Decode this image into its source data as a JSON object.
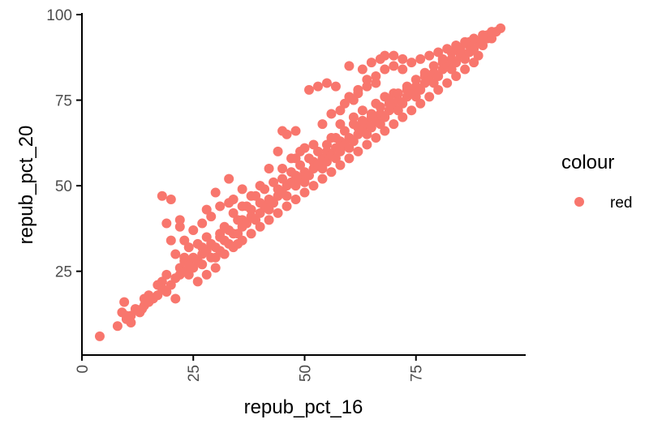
{
  "chart_data": {
    "type": "scatter",
    "xlabel": "repub_pct_16",
    "ylabel": "repub_pct_20",
    "xlim": [
      0,
      98
    ],
    "ylim": [
      1,
      100
    ],
    "x_ticks": [
      "0",
      "25",
      "50",
      "75"
    ],
    "y_ticks": [
      "25",
      "50",
      "75",
      "100"
    ],
    "grid": false,
    "legend": {
      "title": "colour",
      "placement": "right",
      "items": [
        {
          "label": "red",
          "color": "#F8766D"
        }
      ]
    },
    "point_color": "#F8766D",
    "series": [
      {
        "points": [
          [
            4,
            6
          ],
          [
            8,
            9
          ],
          [
            9,
            13
          ],
          [
            9.5,
            16
          ],
          [
            10,
            11
          ],
          [
            11,
            12
          ],
          [
            11,
            10
          ],
          [
            13,
            13
          ],
          [
            13.5,
            14
          ],
          [
            14,
            15
          ],
          [
            15,
            16
          ],
          [
            15,
            18
          ],
          [
            16,
            17
          ],
          [
            17,
            18
          ],
          [
            18,
            20
          ],
          [
            18,
            22
          ],
          [
            19,
            19
          ],
          [
            20,
            21
          ],
          [
            21,
            17
          ],
          [
            21,
            23
          ],
          [
            22,
            24
          ],
          [
            22,
            26
          ],
          [
            23,
            25
          ],
          [
            23,
            28
          ],
          [
            24,
            24
          ],
          [
            24,
            27
          ],
          [
            25,
            26
          ],
          [
            25,
            29
          ],
          [
            26,
            28
          ],
          [
            27,
            30
          ],
          [
            27,
            27
          ],
          [
            28,
            31
          ],
          [
            29,
            29
          ],
          [
            29,
            33
          ],
          [
            30,
            32
          ],
          [
            31,
            31
          ],
          [
            31,
            35
          ],
          [
            32,
            34
          ],
          [
            33,
            33
          ],
          [
            33,
            37
          ],
          [
            34,
            36
          ],
          [
            35,
            36
          ],
          [
            36,
            38
          ],
          [
            36,
            40
          ],
          [
            37,
            39
          ],
          [
            38,
            41
          ],
          [
            38,
            43
          ],
          [
            39,
            40
          ],
          [
            40,
            42
          ],
          [
            40,
            45
          ],
          [
            41,
            44
          ],
          [
            42,
            43
          ],
          [
            42,
            46
          ],
          [
            43,
            45
          ],
          [
            44,
            47
          ],
          [
            44,
            49
          ],
          [
            45,
            48
          ],
          [
            46,
            47
          ],
          [
            46,
            50
          ],
          [
            47,
            51
          ],
          [
            48,
            50
          ],
          [
            48,
            53
          ],
          [
            49,
            52
          ],
          [
            50,
            51
          ],
          [
            50,
            54
          ],
          [
            51,
            53
          ],
          [
            52,
            55
          ],
          [
            52,
            57
          ],
          [
            53,
            56
          ],
          [
            54,
            58
          ],
          [
            54,
            55
          ],
          [
            55,
            57
          ],
          [
            55,
            60
          ],
          [
            56,
            59
          ],
          [
            57,
            61
          ],
          [
            57,
            58
          ],
          [
            58,
            60
          ],
          [
            58,
            63
          ],
          [
            59,
            62
          ],
          [
            60,
            61
          ],
          [
            60,
            64
          ],
          [
            61,
            63
          ],
          [
            62,
            65
          ],
          [
            62,
            67
          ],
          [
            63,
            66
          ],
          [
            64,
            65
          ],
          [
            64,
            68
          ],
          [
            65,
            67
          ],
          [
            65,
            70
          ],
          [
            66,
            69
          ],
          [
            67,
            68
          ],
          [
            67,
            71
          ],
          [
            68,
            70
          ],
          [
            69,
            72
          ],
          [
            69,
            74
          ],
          [
            70,
            73
          ],
          [
            71,
            72
          ],
          [
            71,
            75
          ],
          [
            72,
            74
          ],
          [
            73,
            76
          ],
          [
            73,
            78
          ],
          [
            74,
            77
          ],
          [
            75,
            76
          ],
          [
            75,
            79
          ],
          [
            76,
            78
          ],
          [
            77,
            80
          ],
          [
            77,
            82
          ],
          [
            78,
            81
          ],
          [
            79,
            80
          ],
          [
            79,
            83
          ],
          [
            80,
            82
          ],
          [
            81,
            84
          ],
          [
            81,
            86
          ],
          [
            82,
            85
          ],
          [
            83,
            84
          ],
          [
            83,
            87
          ],
          [
            84,
            86
          ],
          [
            85,
            88
          ],
          [
            85,
            89
          ],
          [
            86,
            87
          ],
          [
            87,
            89
          ],
          [
            87,
            91
          ],
          [
            88,
            90
          ],
          [
            89,
            92
          ],
          [
            89,
            88
          ],
          [
            90,
            91
          ],
          [
            91,
            93
          ],
          [
            91,
            94
          ],
          [
            92,
            93
          ],
          [
            93,
            95
          ],
          [
            94,
            96
          ],
          [
            18,
            47
          ],
          [
            20,
            46
          ],
          [
            19,
            39
          ],
          [
            20,
            34
          ],
          [
            22,
            38
          ],
          [
            22,
            40
          ],
          [
            21,
            30
          ],
          [
            23,
            34
          ],
          [
            25,
            37
          ],
          [
            27,
            39
          ],
          [
            28,
            43
          ],
          [
            29,
            41
          ],
          [
            30,
            48
          ],
          [
            31,
            44
          ],
          [
            33,
            52
          ],
          [
            34,
            46
          ],
          [
            36,
            49
          ],
          [
            38,
            47
          ],
          [
            44,
            60
          ],
          [
            45,
            66
          ],
          [
            46,
            65
          ],
          [
            48,
            66
          ],
          [
            51,
            78
          ],
          [
            53,
            79
          ],
          [
            55,
            80
          ],
          [
            57,
            79
          ],
          [
            60,
            85
          ],
          [
            63,
            84
          ],
          [
            65,
            86
          ],
          [
            67,
            87
          ],
          [
            68,
            88
          ],
          [
            70,
            88
          ],
          [
            72,
            87
          ],
          [
            47,
            58
          ],
          [
            49,
            60
          ],
          [
            52,
            62
          ],
          [
            56,
            64
          ],
          [
            58,
            68
          ],
          [
            61,
            70
          ],
          [
            63,
            72
          ],
          [
            66,
            74
          ],
          [
            68,
            76
          ],
          [
            70,
            77
          ],
          [
            24,
            32
          ],
          [
            26,
            33
          ],
          [
            28,
            35
          ],
          [
            32,
            38
          ],
          [
            34,
            42
          ],
          [
            37,
            44
          ],
          [
            39,
            47
          ],
          [
            41,
            49
          ],
          [
            43,
            51
          ],
          [
            45,
            52
          ],
          [
            47,
            54
          ],
          [
            49,
            56
          ],
          [
            51,
            58
          ],
          [
            53,
            60
          ],
          [
            55,
            62
          ],
          [
            57,
            64
          ],
          [
            59,
            66
          ],
          [
            61,
            68
          ],
          [
            63,
            69
          ],
          [
            65,
            71
          ],
          [
            67,
            73
          ],
          [
            69,
            75
          ],
          [
            71,
            77
          ],
          [
            73,
            79
          ],
          [
            75,
            81
          ],
          [
            77,
            83
          ],
          [
            79,
            85
          ],
          [
            81,
            87
          ],
          [
            83,
            89
          ],
          [
            85,
            90
          ],
          [
            87,
            92
          ],
          [
            59,
            74
          ],
          [
            61,
            75
          ],
          [
            62,
            77
          ],
          [
            64,
            79
          ],
          [
            66,
            80
          ],
          [
            45,
            55
          ],
          [
            35,
            40
          ],
          [
            31,
            36
          ],
          [
            27,
            32
          ],
          [
            23,
            29
          ],
          [
            19,
            24
          ],
          [
            17,
            21
          ],
          [
            14,
            17
          ],
          [
            12,
            14
          ],
          [
            10,
            12
          ],
          [
            30,
            29
          ],
          [
            32,
            30
          ],
          [
            34,
            32
          ],
          [
            36,
            34
          ],
          [
            38,
            36
          ],
          [
            40,
            38
          ],
          [
            42,
            40
          ],
          [
            44,
            42
          ],
          [
            46,
            44
          ],
          [
            48,
            46
          ],
          [
            50,
            48
          ],
          [
            52,
            50
          ],
          [
            54,
            52
          ],
          [
            56,
            54
          ],
          [
            58,
            56
          ],
          [
            60,
            58
          ],
          [
            62,
            60
          ],
          [
            64,
            62
          ],
          [
            66,
            64
          ],
          [
            68,
            66
          ],
          [
            70,
            68
          ],
          [
            72,
            70
          ],
          [
            74,
            72
          ],
          [
            76,
            74
          ],
          [
            78,
            76
          ],
          [
            80,
            78
          ],
          [
            82,
            80
          ],
          [
            84,
            82
          ],
          [
            86,
            84
          ],
          [
            88,
            86
          ],
          [
            33,
            45
          ],
          [
            36,
            44
          ],
          [
            40,
            50
          ],
          [
            42,
            55
          ],
          [
            48,
            58
          ],
          [
            50,
            61
          ],
          [
            54,
            68
          ],
          [
            56,
            71
          ],
          [
            58,
            72
          ],
          [
            60,
            76
          ],
          [
            62,
            78
          ],
          [
            64,
            81
          ],
          [
            66,
            82
          ],
          [
            68,
            84
          ],
          [
            70,
            85
          ],
          [
            72,
            84
          ],
          [
            74,
            86
          ],
          [
            76,
            87
          ],
          [
            78,
            88
          ],
          [
            80,
            89
          ],
          [
            82,
            90
          ],
          [
            84,
            91
          ],
          [
            86,
            92
          ],
          [
            88,
            93
          ],
          [
            90,
            94
          ],
          [
            92,
            95
          ],
          [
            26,
            22
          ],
          [
            28,
            24
          ],
          [
            30,
            26
          ],
          [
            35,
            33
          ]
        ]
      }
    ]
  }
}
